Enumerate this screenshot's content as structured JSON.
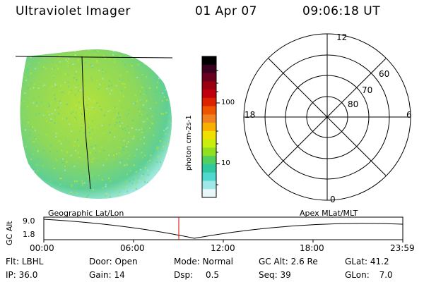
{
  "header": {
    "title": "Ultraviolet Imager",
    "date": "01 Apr 07",
    "time": "09:06:18 UT"
  },
  "colorbar": {
    "unit_label": "photon cm-2s-1",
    "ticks": [
      "100",
      "10"
    ],
    "colors": [
      "#000000",
      "#3a0020",
      "#6a0020",
      "#9a0010",
      "#c00010",
      "#dd2200",
      "#ee5500",
      "#f08020",
      "#f8b000",
      "#f0e000",
      "#c8ee10",
      "#90e020",
      "#50d060",
      "#30c8a0",
      "#50d8d0",
      "#a0e8e8",
      "#e8f8f8"
    ]
  },
  "polar_plot": {
    "lat_labels": [
      "60",
      "70",
      "80"
    ],
    "mlt_labels": {
      "top": "12",
      "left": "18",
      "right": "6",
      "bottom": "0"
    }
  },
  "timeline": {
    "axis_label": "GC Alt",
    "left_title": "Geographic Lat/Lon",
    "right_title": "Apex MLat/MLT",
    "y_ticks": [
      "9.0",
      "1.8"
    ],
    "x_ticks": [
      "00:00",
      "06:00",
      "12:00",
      "18:00",
      "23:59"
    ],
    "current_time_color": "#dd0000"
  },
  "status": {
    "flt_label": "Flt:",
    "flt_value": "LBHL",
    "ip_label": "IP:",
    "ip_value": "36.0",
    "door_label": "Door:",
    "door_value": "Open",
    "gain_label": "Gain:",
    "gain_value": "14",
    "mode_label": "Mode:",
    "mode_value": "Normal",
    "dsp_label": "Dsp:",
    "dsp_value": "0.5",
    "gcalt_label": "GC Alt:",
    "gcalt_value": "2.6 Re",
    "seq_label": "Seq:",
    "seq_value": "39",
    "glat_label": "GLat:",
    "glat_value": "41.2",
    "glon_label": "GLon:",
    "glon_value": "7.0"
  }
}
